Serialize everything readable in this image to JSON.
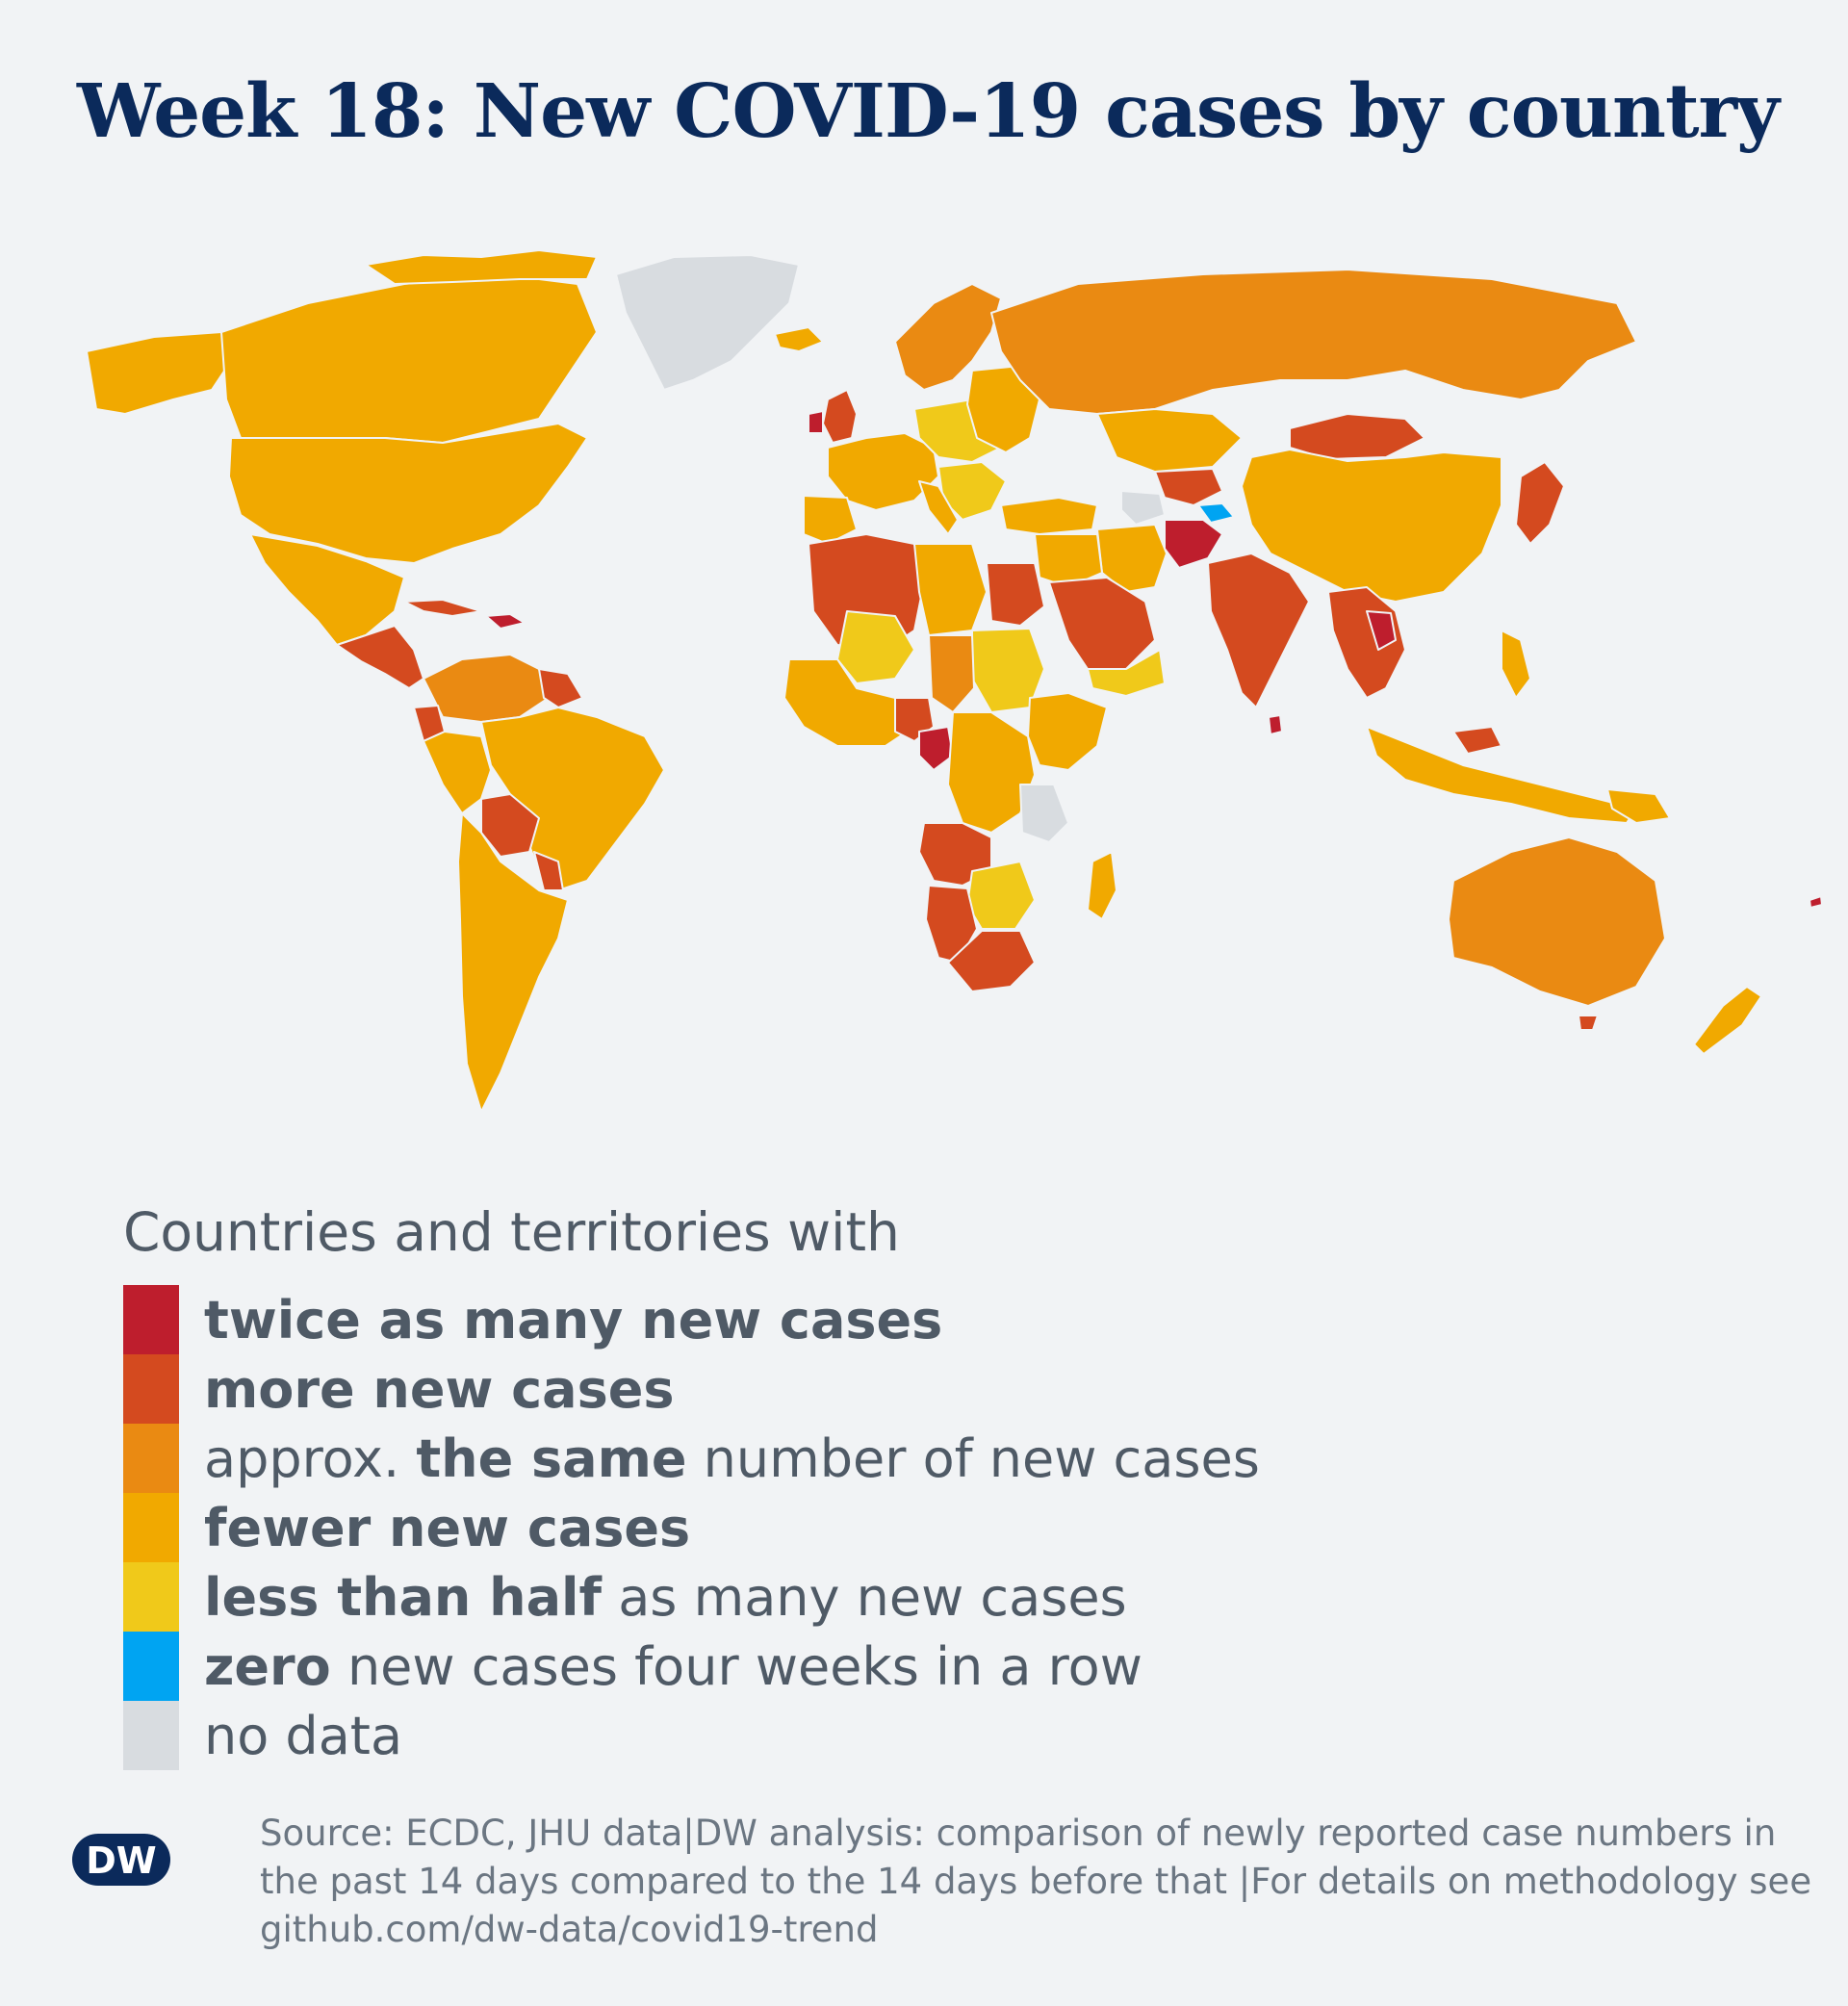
{
  "title": "Week 18: New COVID-19 cases by country",
  "legend": {
    "heading": "Countries and territories with",
    "items": [
      {
        "color": "#be1e2d",
        "bold": "twice as many new cases",
        "rest": ""
      },
      {
        "color": "#d44a1f",
        "bold": "more new cases",
        "rest": ""
      },
      {
        "color": "#ea8a12",
        "pre": "approx. ",
        "bold": "the same",
        "rest": " number of new cases"
      },
      {
        "color": "#f1a900",
        "bold": "fewer new cases",
        "rest": ""
      },
      {
        "color": "#f0c91a",
        "bold": "less than half",
        "rest": " as many new cases"
      },
      {
        "color": "#00a4f2",
        "bold": "zero",
        "rest": " new cases four weeks in a row"
      },
      {
        "color": "#d8dce0",
        "bold": "",
        "rest": "no data"
      }
    ]
  },
  "source": "Source: ECDC, JHU data|DW analysis: comparison of newly reported case numbers in the past 14 days compared to the 14 days before that |For details on methodology see github.com/dw-data/covid19-trend",
  "logo": "DW",
  "colors": {
    "twice": "#be1e2d",
    "more": "#d44a1f",
    "same": "#ea8a12",
    "fewer": "#f1a900",
    "less_half": "#f0c91a",
    "zero": "#00a4f2",
    "no_data": "#d8dce0",
    "background": "#f1f3f5",
    "title": "#0b2a5b",
    "text": "#4f5a66"
  }
}
